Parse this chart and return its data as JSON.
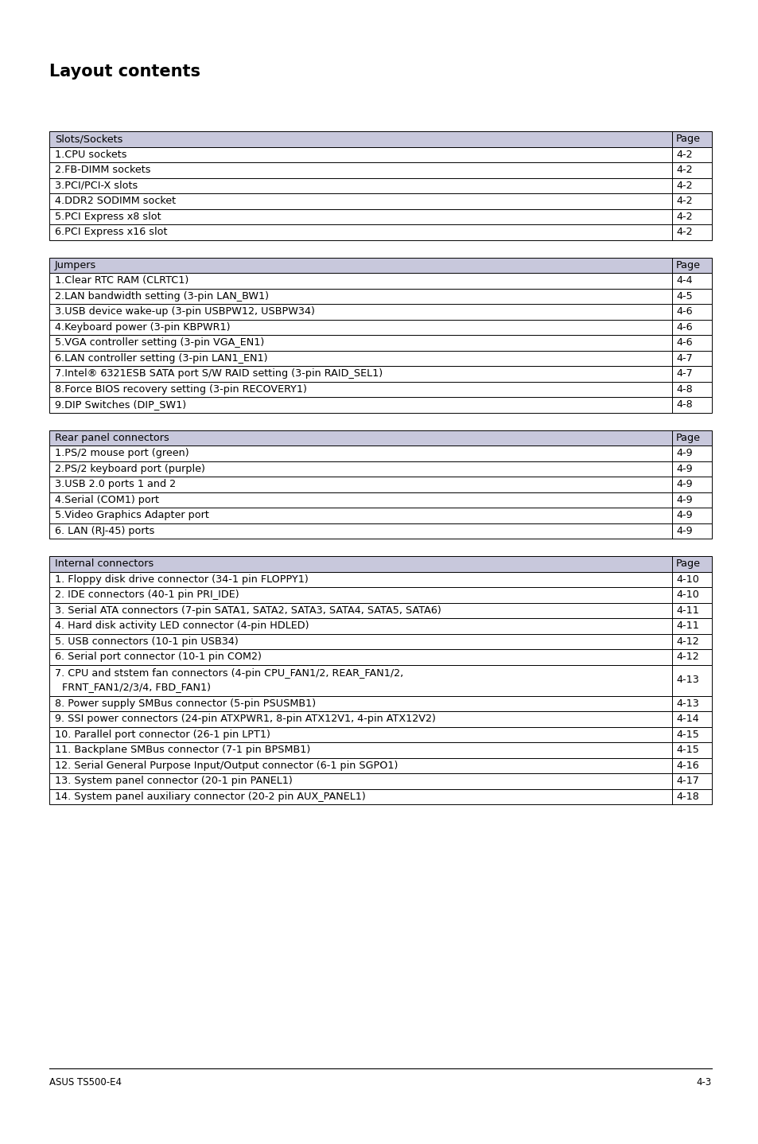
{
  "title": "Layout contents",
  "bg_color": "#ffffff",
  "header_bg": "#c8c8dc",
  "border_color": "#000000",
  "font_size": 9.2,
  "title_font_size": 15,
  "footer_left": "ASUS TS500-E4",
  "footer_right": "4-3",
  "tables": [
    {
      "header": [
        "Slots/Sockets",
        "Page"
      ],
      "rows": [
        [
          "1.CPU sockets",
          "4-2"
        ],
        [
          "2.FB-DIMM sockets",
          "4-2"
        ],
        [
          "3.PCI/PCI-X slots",
          "4-2"
        ],
        [
          "4.DDR2 SODIMM socket",
          "4-2"
        ],
        [
          "5.PCI Express x8 slot",
          "4-2"
        ],
        [
          "6.PCI Express x16 slot",
          "4-2"
        ]
      ]
    },
    {
      "header": [
        "Jumpers",
        "Page"
      ],
      "rows": [
        [
          "1.Clear RTC RAM (CLRTC1)",
          "4-4"
        ],
        [
          "2.LAN bandwidth setting (3-pin LAN_BW1)",
          "4-5"
        ],
        [
          "3.USB device wake-up (3-pin USBPW12, USBPW34)",
          "4-6"
        ],
        [
          "4.Keyboard power (3-pin KBPWR1)",
          "4-6"
        ],
        [
          "5.VGA controller setting (3-pin VGA_EN1)",
          "4-6"
        ],
        [
          "6.LAN controller setting (3-pin LAN1_EN1)",
          "4-7"
        ],
        [
          "7.Intel® 6321ESB SATA port S/W RAID setting (3-pin RAID_SEL1)",
          "4-7"
        ],
        [
          "8.Force BIOS recovery setting (3-pin RECOVERY1)",
          "4-8"
        ],
        [
          "9.DIP Switches (DIP_SW1)",
          "4-8"
        ]
      ]
    },
    {
      "header": [
        "Rear panel connectors",
        "Page"
      ],
      "rows": [
        [
          "1.PS/2 mouse port (green)",
          "4-9"
        ],
        [
          "2.PS/2 keyboard port (purple)",
          "4-9"
        ],
        [
          "3.USB 2.0 ports 1 and 2",
          "4-9"
        ],
        [
          "4.Serial (COM1) port",
          "4-9"
        ],
        [
          "5.Video Graphics Adapter port",
          "4-9"
        ],
        [
          "6. LAN (RJ-45) ports",
          "4-9"
        ]
      ]
    },
    {
      "header": [
        "Internal connectors",
        "Page"
      ],
      "rows": [
        [
          "1. Floppy disk drive connector (34-1 pin FLOPPY1)",
          "4-10"
        ],
        [
          "2. IDE connectors (40-1 pin PRI_IDE)",
          "4-10"
        ],
        [
          "3. Serial ATA connectors (7-pin SATA1, SATA2, SATA3, SATA4, SATA5, SATA6)",
          "4-11"
        ],
        [
          "4. Hard disk activity LED connector (4-pin HDLED)",
          "4-11"
        ],
        [
          "5. USB connectors (10-1 pin USB34)",
          "4-12"
        ],
        [
          "6. Serial port connector (10-1 pin COM2)",
          "4-12"
        ],
        [
          "7. CPU and ststem fan connectors (4-pin CPU_FAN1/2, REAR_FAN1/2,\nFRNT_FAN1/2/3/4, FBD_FAN1)",
          "4-13"
        ],
        [
          "8. Power supply SMBus connector (5-pin PSUSMB1)",
          "4-13"
        ],
        [
          "9. SSI power connectors (24-pin ATXPWR1, 8-pin ATX12V1, 4-pin ATX12V2)",
          "4-14"
        ],
        [
          "10. Parallel port connector (26-1 pin LPT1)",
          "4-15"
        ],
        [
          "11. Backplane SMBus connector (7-1 pin BPSMB1)",
          "4-15"
        ],
        [
          "12. Serial General Purpose Input/Output connector (6-1 pin SGPO1)",
          "4-16"
        ],
        [
          "13. System panel connector (20-1 pin PANEL1)",
          "4-17"
        ],
        [
          "14. System panel auxiliary connector (20-2 pin AUX_PANEL1)",
          "4-18"
        ]
      ]
    }
  ]
}
